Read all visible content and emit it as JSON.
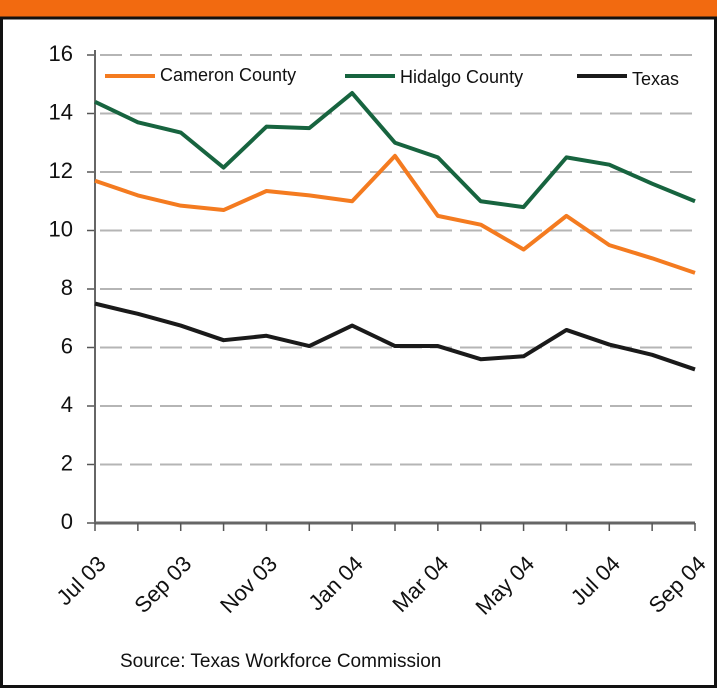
{
  "chart_data": {
    "type": "line",
    "categories": [
      "Jul 03",
      null,
      "Sep 03",
      null,
      "Nov 03",
      null,
      "Jan 04",
      null,
      "Mar 04",
      null,
      "May 04",
      null,
      "Jul 04",
      null,
      "Sep 04"
    ],
    "series": [
      {
        "name": "Cameron County",
        "color": "#f47b20",
        "values": [
          11.7,
          11.2,
          10.85,
          10.7,
          11.35,
          11.2,
          11.0,
          12.55,
          10.5,
          10.2,
          9.35,
          10.5,
          9.5,
          9.05,
          8.55
        ]
      },
      {
        "name": "Hidalgo County",
        "color": "#17643f",
        "values": [
          14.4,
          13.7,
          13.35,
          12.15,
          13.55,
          13.5,
          14.7,
          13.0,
          12.5,
          11.0,
          10.8,
          12.5,
          12.25,
          11.6,
          11.0
        ]
      },
      {
        "name": "Texas",
        "color": "#1a1a1a",
        "values": [
          7.5,
          7.15,
          6.75,
          6.25,
          6.4,
          6.05,
          6.75,
          6.05,
          6.05,
          5.6,
          5.7,
          6.6,
          6.1,
          5.75,
          5.25
        ]
      }
    ],
    "ylim": [
      0,
      16
    ],
    "yticks": [
      0,
      2,
      4,
      6,
      8,
      10,
      12,
      14,
      16
    ],
    "grid": true,
    "legend": "top",
    "source": "Source: Texas Workforce Commission"
  }
}
